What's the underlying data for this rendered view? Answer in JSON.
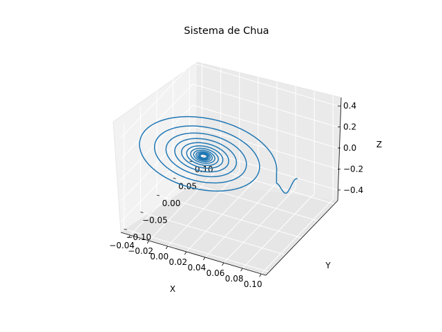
{
  "chart_data": {
    "type": "line",
    "projection": "3d",
    "title": "Sistema de Chua",
    "xlabel": "X",
    "ylabel": "Y",
    "zlabel": "Z",
    "xlim": [
      -0.05,
      0.105
    ],
    "ylim": [
      -0.11,
      0.11
    ],
    "zlim": [
      -0.5,
      0.5
    ],
    "xticks": [
      "−0.04",
      "−0.02",
      "0.00",
      "0.02",
      "0.04",
      "0.06",
      "0.08",
      "0.10"
    ],
    "yticks": [
      "−0.10",
      "−0.05",
      "0.00",
      "0.05",
      "0.10"
    ],
    "zticks": [
      "−0.4",
      "−0.2",
      "0.0",
      "0.2",
      "0.4"
    ],
    "grid": true,
    "series": [
      {
        "color": "#1f77b4",
        "description_of_path": "trajectory starting near (0.10, 0.00, 0.05) and spiralling inward to about (0.00, 0.00, 0.00)",
        "start": {
          "x": 0.1,
          "y": 0.0,
          "z": 0.05
        },
        "end": {
          "x": 0.0,
          "y": 0.0,
          "z": 0.0
        }
      }
    ]
  }
}
